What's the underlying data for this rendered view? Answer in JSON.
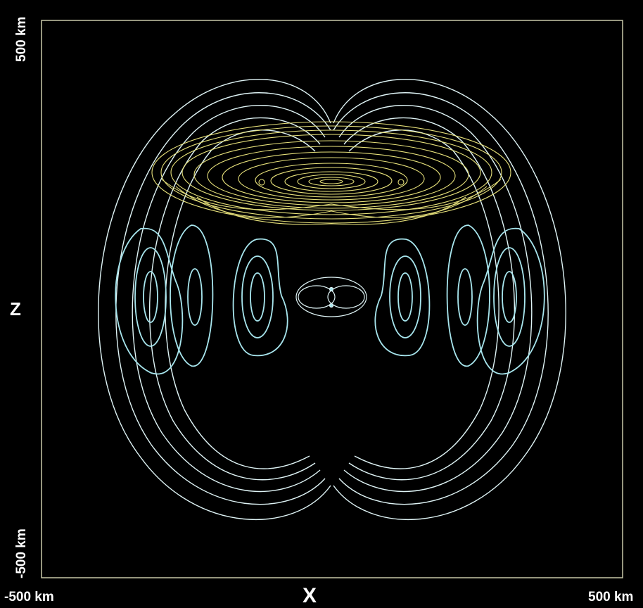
{
  "axes": {
    "x_label": "X",
    "z_label": "Z",
    "x_min_label": "-500 km",
    "x_max_label": "500 km",
    "z_max_label": "500 km",
    "z_min_label": "-500 km"
  },
  "colors": {
    "background": "#000000",
    "frame": "#c8c8a8",
    "field_lines": "#dff4f6",
    "field_lines_accent": "#a8e6ee",
    "disk_contours": "#e6e07a"
  }
}
